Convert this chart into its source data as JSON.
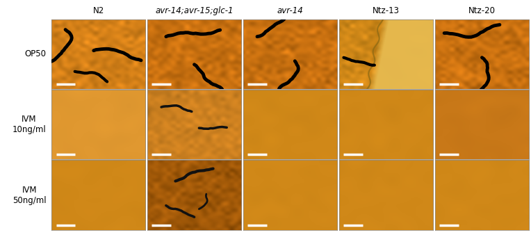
{
  "col_labels": [
    "N2",
    "avr-14;avr-15;glc-1",
    "avr-14",
    "Ntz-13",
    "Ntz-20"
  ],
  "col_labels_italic": [
    false,
    true,
    true,
    false,
    false
  ],
  "row_labels": [
    "OP50",
    "IVM\n10ng/ml",
    "IVM\n50ng/ml"
  ],
  "figure_width": 7.64,
  "figure_height": 3.38,
  "bg_color": "#ffffff",
  "cell_base_colors": [
    [
      "#d48018",
      "#c87010",
      "#c87010",
      "#d08818",
      "#c87010"
    ],
    [
      "#e09830",
      "#cc8020",
      "#d08818",
      "#d08818",
      "#c87818"
    ],
    [
      "#d08818",
      "#a05808",
      "#d08818",
      "#d08818",
      "#d08818"
    ]
  ],
  "label_fontsize": 8.5,
  "row_label_fontsize": 8.5
}
